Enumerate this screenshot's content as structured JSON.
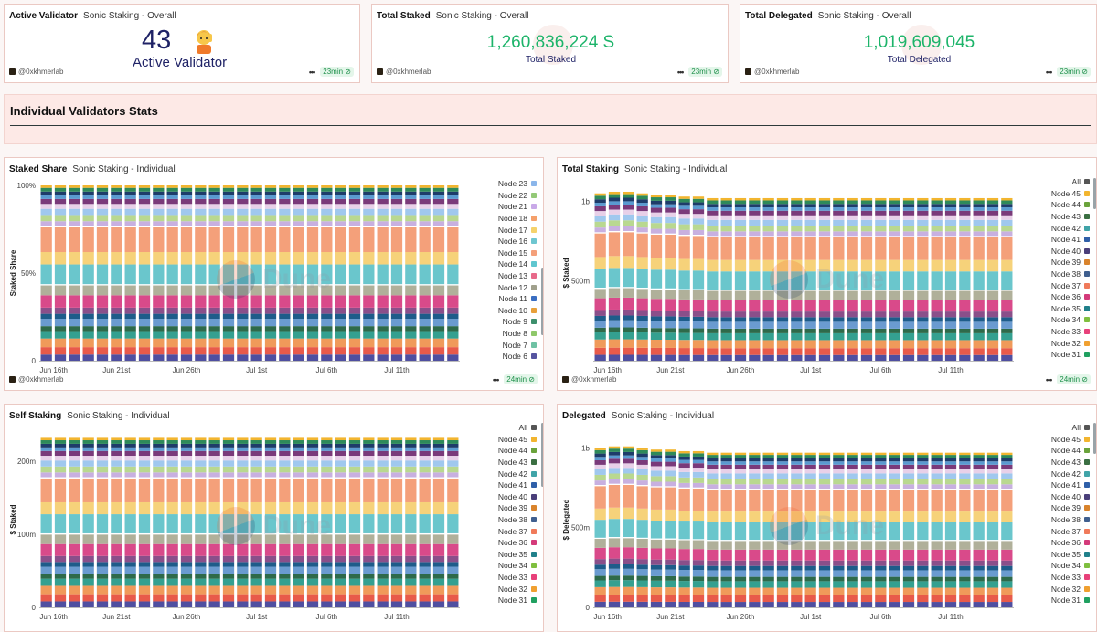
{
  "kpi": [
    {
      "title": "Active Validator",
      "subtitle": "Sonic Staking - Overall",
      "value": "43",
      "label": "Active Validator",
      "author": "@0xkhmerlab",
      "freshness": "23min"
    },
    {
      "title": "Total Staked",
      "subtitle": "Sonic Staking - Overall",
      "value": "1,260,836,224 S",
      "label": "Total Staked",
      "author": "@0xkhmerlab",
      "freshness": "23min"
    },
    {
      "title": "Total Delegated",
      "subtitle": "Sonic Staking - Overall",
      "value": "1,019,609,045",
      "label": "Total Delegated",
      "author": "@0xkhmerlab",
      "freshness": "23min"
    }
  ],
  "section": {
    "title": "Individual Validators Stats"
  },
  "colors": {
    "accent_green": "#1db46a",
    "kpi_blue": "#1f2266",
    "card_border": "#ebc9c3",
    "section_bg": "#fde9e6"
  },
  "watermark": "Dune",
  "charts": [
    {
      "title": "Staked Share",
      "subtitle": "Sonic Staking - Individual",
      "ylabel": "Staked Share",
      "yticks": [
        "0",
        "50%",
        "100%"
      ],
      "author": "@0xkhmerlab",
      "freshness": "24min"
    },
    {
      "title": "Total Staking",
      "subtitle": "Sonic Staking - Individual",
      "ylabel": "$ Staked",
      "yticks": [
        "500m",
        "1b"
      ],
      "author": "@0xkhmerlab",
      "freshness": "24min"
    },
    {
      "title": "Self Staking",
      "subtitle": "Sonic Staking - Individual",
      "ylabel": "$ Staked",
      "yticks": [
        "0",
        "100m",
        "200m"
      ]
    },
    {
      "title": "Delegated",
      "subtitle": "Sonic Staking - Individual",
      "ylabel": "$ Delegated",
      "yticks": [
        "0",
        "500m",
        "1b"
      ]
    }
  ],
  "chart_data": [
    {
      "type": "bar",
      "stacked": true,
      "title": "Staked Share",
      "ylabel": "Staked Share",
      "ylim": [
        0,
        1
      ],
      "x_ticks": [
        "Jun 16th",
        "Jun 21st",
        "Jun 26th",
        "Jul 1st",
        "Jul 6th",
        "Jul 11th"
      ],
      "legend_visible": [
        "Node 23",
        "Node 22",
        "Node 21",
        "Node 18",
        "Node 17",
        "Node 16",
        "Node 15",
        "Node 14",
        "Node 13",
        "Node 12",
        "Node 11",
        "Node 10",
        "Node 9",
        "Node 8",
        "Node 7",
        "Node 6"
      ],
      "bar_count": 30
    },
    {
      "type": "bar",
      "stacked": true,
      "title": "Total Staking",
      "ylabel": "$ Staked",
      "ylim": [
        0,
        1100000000
      ],
      "x_ticks": [
        "Jun 16th",
        "Jun 21st",
        "Jun 26th",
        "Jul 1st",
        "Jul 6th",
        "Jul 11th"
      ],
      "legend_visible": [
        "All",
        "Node 45",
        "Node 44",
        "Node 43",
        "Node 42",
        "Node 41",
        "Node 40",
        "Node 39",
        "Node 38",
        "Node 37",
        "Node 36",
        "Node 35",
        "Node 34",
        "Node 33",
        "Node 32",
        "Node 31"
      ],
      "bar_count": 30,
      "totals_approx": [
        1050000000,
        1060000000,
        1060000000,
        1050000000,
        1040000000,
        1040000000,
        1030000000,
        1030000000,
        1020000000,
        1020000000,
        1020000000,
        1020000000,
        1020000000,
        1020000000,
        1020000000,
        1020000000,
        1020000000,
        1020000000,
        1020000000,
        1020000000,
        1020000000,
        1020000000,
        1020000000,
        1020000000,
        1020000000,
        1020000000,
        1020000000,
        1020000000,
        1020000000,
        1020000000
      ]
    },
    {
      "type": "bar",
      "stacked": true,
      "title": "Self Staking",
      "ylabel": "$ Staked",
      "ylim": [
        0,
        240000000
      ],
      "x_ticks": [
        "Jun 16th",
        "Jun 21st",
        "Jun 26th",
        "Jul 1st",
        "Jul 6th",
        "Jul 11th"
      ],
      "legend_visible": [
        "All",
        "Node 45",
        "Node 44",
        "Node 43",
        "Node 42",
        "Node 41",
        "Node 40",
        "Node 39",
        "Node 38",
        "Node 37",
        "Node 36",
        "Node 35",
        "Node 34",
        "Node 33",
        "Node 32",
        "Node 31"
      ],
      "bar_count": 30,
      "totals_approx": [
        232000000,
        232000000,
        232000000,
        232000000,
        232000000,
        232000000,
        232000000,
        232000000,
        232000000,
        232000000,
        232000000,
        232000000,
        232000000,
        232000000,
        232000000,
        232000000,
        232000000,
        232000000,
        232000000,
        232000000,
        232000000,
        232000000,
        232000000,
        232000000,
        232000000,
        232000000,
        232000000,
        232000000,
        232000000,
        232000000
      ]
    },
    {
      "type": "bar",
      "stacked": true,
      "title": "Delegated",
      "ylabel": "$ Delegated",
      "ylim": [
        0,
        1100000000
      ],
      "x_ticks": [
        "Jun 16th",
        "Jun 21st",
        "Jun 26th",
        "Jul 1st",
        "Jul 6th",
        "Jul 11th"
      ],
      "legend_visible": [
        "All",
        "Node 45",
        "Node 44",
        "Node 43",
        "Node 42",
        "Node 41",
        "Node 40",
        "Node 39",
        "Node 38",
        "Node 37",
        "Node 36",
        "Node 35",
        "Node 34",
        "Node 33",
        "Node 32",
        "Node 31"
      ],
      "bar_count": 30,
      "totals_approx": [
        1000000000,
        1010000000,
        1010000000,
        1000000000,
        990000000,
        990000000,
        980000000,
        980000000,
        970000000,
        970000000,
        970000000,
        970000000,
        970000000,
        970000000,
        970000000,
        970000000,
        970000000,
        970000000,
        970000000,
        970000000,
        970000000,
        970000000,
        970000000,
        970000000,
        970000000,
        970000000,
        970000000,
        970000000,
        970000000,
        970000000
      ]
    }
  ],
  "legend_colors": {
    "Staked Share": [
      "#8bb6ea",
      "#94c978",
      "#c9a9e8",
      "#f5a06b",
      "#f5d26b",
      "#6ec6d0",
      "#f4a07a",
      "#5fc6cf",
      "#e86a8a",
      "#a0a08c",
      "#3a6ec2",
      "#e8a03a",
      "#3d8f6c",
      "#8fc86a",
      "#6fc2a4",
      "#5654a0"
    ],
    "All Nodes": [
      "#555555",
      "#f2b52f",
      "#6aa33b",
      "#3a6f42",
      "#40a4a8",
      "#2f5fa8",
      "#4a3f7a",
      "#d9832b",
      "#3f5f8f",
      "#f07a5a",
      "#d43a7a",
      "#20808a",
      "#7fbf3f",
      "#e8407a",
      "#f0a030",
      "#20a060"
    ]
  },
  "stack_palette": [
    "#4f4fa0",
    "#e85a4a",
    "#f09a5a",
    "#34a090",
    "#2e6a4a",
    "#6a9bd0",
    "#1e5c8a",
    "#8a4f8a",
    "#d94a8a",
    "#b0b09a",
    "#ffffff",
    "#6ac6cc",
    "#f6d27a",
    "#f4a07a",
    "#ffffff",
    "#c8b0e0",
    "#b9d890",
    "#a0c8ee",
    "#e8d0e8",
    "#7a3a7a",
    "#5a9ad0",
    "#1e3c6a",
    "#2e8a5a",
    "#f2b52f"
  ]
}
